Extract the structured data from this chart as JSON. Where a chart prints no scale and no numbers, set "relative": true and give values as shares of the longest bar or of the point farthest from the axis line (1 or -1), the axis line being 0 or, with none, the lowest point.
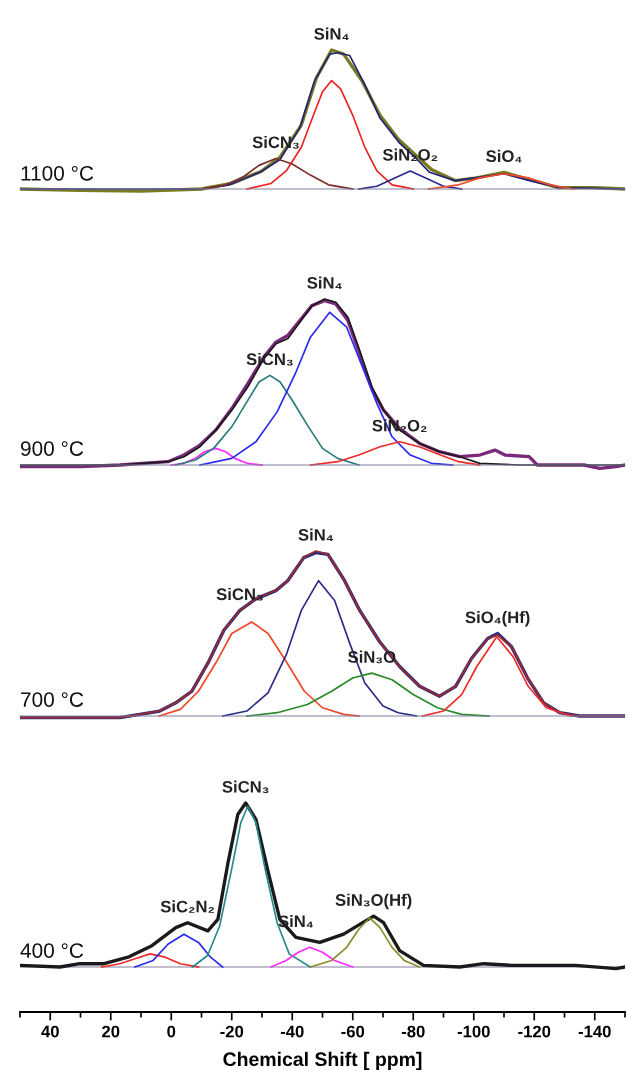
{
  "chart_data": [
    {
      "type": "line",
      "relative": true,
      "tick_labels": false,
      "grid": false,
      "legend": false,
      "marker": "none",
      "line_style": "solid",
      "xlim": [
        50,
        -150
      ],
      "annotations": [
        "1100 °C",
        {
          "text": "SiN₄",
          "x": -53,
          "y": 1.0
        },
        {
          "text": "SiCN₃",
          "x": -34.6,
          "y": 0.22
        },
        {
          "text": "SiN₂O₂",
          "x": -79,
          "y": 0.13
        },
        {
          "text": "SiO₄",
          "x": -110,
          "y": 0.12
        }
      ],
      "series": [
        {
          "color": "#7a7a20",
          "x": [
            50,
            30,
            10,
            -10,
            -20,
            -30,
            -36,
            -43,
            -48,
            -53,
            -57,
            -63,
            -69,
            -75,
            -81,
            -86,
            -94,
            -101,
            -110,
            -118,
            -128,
            -140,
            -150
          ],
          "values": [
            0,
            -0.01,
            -0.015,
            0,
            0.04,
            0.13,
            0.23,
            0.46,
            0.8,
            1.0,
            0.97,
            0.78,
            0.53,
            0.36,
            0.24,
            0.14,
            0.06,
            0.08,
            0.12,
            0.07,
            0.01,
            0.01,
            0
          ]
        },
        {
          "color": "#23237a",
          "x": [
            50,
            -10,
            -19.3,
            -29.3,
            -35.9,
            -42.5,
            -47.4,
            -52.4,
            -55,
            -59,
            -64,
            -69,
            -75.5,
            -80.5,
            -85.4,
            -93.7,
            -100.3,
            -110,
            -118.5,
            -128.4,
            -150
          ],
          "values": [
            0,
            0,
            0.03,
            0.12,
            0.21,
            0.44,
            0.78,
            0.97,
            0.98,
            0.96,
            0.75,
            0.51,
            0.33,
            0.23,
            0.12,
            0.06,
            0.08,
            0.11,
            0.06,
            0.01,
            0
          ]
        },
        {
          "color": "#7b2d2d",
          "x": [
            -10,
            -18,
            -24,
            -29,
            -34.6,
            -40,
            -46,
            -52,
            -60
          ],
          "values": [
            0,
            0.03,
            0.09,
            0.17,
            0.22,
            0.18,
            0.1,
            0.03,
            0
          ]
        },
        {
          "color": "#ee2222",
          "x": [
            -25,
            -33,
            -38,
            -43,
            -47,
            -50,
            -53,
            -56,
            -60,
            -64,
            -68,
            -73,
            -80
          ],
          "values": [
            0,
            0.04,
            0.13,
            0.3,
            0.53,
            0.7,
            0.78,
            0.72,
            0.53,
            0.3,
            0.13,
            0.03,
            0
          ]
        },
        {
          "color": "#2a2a8c",
          "x": [
            -62,
            -68,
            -73,
            -79,
            -85,
            -90,
            -96
          ],
          "values": [
            0,
            0.02,
            0.07,
            0.13,
            0.07,
            0.02,
            0
          ]
        },
        {
          "color": "#f04a2a",
          "x": [
            -85,
            -95,
            -102,
            -110,
            -118,
            -125,
            -133
          ],
          "values": [
            0,
            0.03,
            0.08,
            0.11,
            0.08,
            0.03,
            0
          ]
        }
      ]
    },
    {
      "type": "line",
      "relative": true,
      "tick_labels": false,
      "grid": false,
      "legend": false,
      "marker": "none",
      "line_style": "solid",
      "xlim": [
        50,
        -150
      ],
      "annotations": [
        "900 °C",
        {
          "text": "SiN₄",
          "x": -50.7,
          "y": 1.0
        },
        {
          "text": "SiCN₃",
          "x": -32.6,
          "y": 0.54
        },
        {
          "text": "SiN₂O₂",
          "x": -75.5,
          "y": 0.14
        }
      ],
      "series": [
        {
          "color": "#7b2a7b",
          "x": [
            50,
            30,
            17,
            1.1,
            -4.2,
            -9.5,
            -14.7,
            -20,
            -25.3,
            -30.6,
            -34.6,
            -38.5,
            -42.5,
            -46.5,
            -50.7,
            -54.4,
            -58.4,
            -62.3,
            -66.3,
            -70.2,
            -75.5,
            -82.1,
            -88.7,
            -95.4,
            -102,
            -107,
            -110.3,
            -118.3,
            -121,
            -136.4,
            -141.7,
            -147,
            -150
          ],
          "values": [
            -0.01,
            -0.01,
            0,
            0.02,
            0.06,
            0.12,
            0.21,
            0.34,
            0.49,
            0.65,
            0.74,
            0.78,
            0.87,
            0.96,
            0.99,
            0.97,
            0.87,
            0.67,
            0.46,
            0.33,
            0.22,
            0.13,
            0.08,
            0.05,
            0.06,
            0.09,
            0.06,
            0.05,
            0,
            0,
            -0.02,
            -0.01,
            0
          ]
        },
        {
          "color": "#1a1a1a",
          "x": [
            50,
            17,
            1.1,
            -4.2,
            -9.5,
            -14.7,
            -20,
            -25.3,
            -30.6,
            -34.6,
            -38.5,
            -42.5,
            -46.5,
            -50.7,
            -54.4,
            -58.4,
            -62.3,
            -66.3,
            -70.2,
            -75.5,
            -82.1,
            -88.7,
            -95.4,
            -102,
            -115,
            -150
          ],
          "values": [
            0,
            0,
            0.02,
            0.05,
            0.11,
            0.21,
            0.33,
            0.47,
            0.64,
            0.73,
            0.76,
            0.86,
            0.96,
            1.0,
            0.98,
            0.89,
            0.69,
            0.47,
            0.33,
            0.21,
            0.13,
            0.08,
            0.05,
            0.01,
            0,
            0
          ]
        },
        {
          "color": "#ff2aff",
          "x": [
            0,
            -4.2,
            -8,
            -11,
            -14.7,
            -18,
            -21,
            -25,
            -30
          ],
          "values": [
            0,
            0.01,
            0.04,
            0.08,
            0.1,
            0.08,
            0.04,
            0.01,
            0
          ]
        },
        {
          "color": "#2a7a7a",
          "x": [
            -1.5,
            -8,
            -14,
            -20,
            -25,
            -29,
            -32.6,
            -36,
            -40,
            -45,
            -50,
            -55,
            -62
          ],
          "values": [
            0,
            0.03,
            0.1,
            0.23,
            0.38,
            0.5,
            0.54,
            0.5,
            0.39,
            0.24,
            0.1,
            0.04,
            0
          ]
        },
        {
          "color": "#2a2af0",
          "x": [
            -9.5,
            -20,
            -28,
            -35,
            -41,
            -46,
            -52.4,
            -58,
            -63,
            -68,
            -73,
            -79,
            -86,
            -93
          ],
          "values": [
            0,
            0.04,
            0.14,
            0.32,
            0.55,
            0.77,
            0.92,
            0.83,
            0.6,
            0.37,
            0.17,
            0.06,
            0.01,
            0
          ]
        },
        {
          "color": "#f02a2a",
          "x": [
            -46,
            -55,
            -62,
            -69,
            -75.5,
            -82,
            -89,
            -95,
            -102
          ],
          "values": [
            0,
            0.02,
            0.06,
            0.11,
            0.14,
            0.11,
            0.06,
            0.02,
            0
          ]
        }
      ]
    },
    {
      "type": "line",
      "relative": true,
      "tick_labels": false,
      "grid": false,
      "legend": false,
      "marker": "none",
      "line_style": "solid",
      "xlim": [
        50,
        -150
      ],
      "annotations": [
        "700 °C",
        {
          "text": "SiN₄",
          "x": -47.8,
          "y": 1.0
        },
        {
          "text": "SiCN₃",
          "x": -22.7,
          "y": 0.64
        },
        {
          "text": "SiN₃O",
          "x": -66.3,
          "y": 0.26
        },
        {
          "text": "SiO₄(Hf)",
          "x": -107.9,
          "y": 0.5
        }
      ],
      "series": [
        {
          "color": "#2b2b80",
          "x": [
            50,
            30,
            17,
            3.8,
            -1.5,
            -6.8,
            -12.1,
            -17.4,
            -22.7,
            -28,
            -34.6,
            -38.5,
            -43.8,
            -47.8,
            -51.8,
            -57,
            -62.3,
            -68.9,
            -75.5,
            -82.1,
            -88.7,
            -94,
            -99.3,
            -104.6,
            -107.9,
            -112.5,
            -117.8,
            -123.1,
            -128.4,
            -135,
            -147,
            -150
          ],
          "values": [
            -0.01,
            -0.01,
            -0.01,
            0.03,
            0.08,
            0.15,
            0.32,
            0.52,
            0.64,
            0.71,
            0.76,
            0.82,
            0.96,
            0.99,
            0.98,
            0.83,
            0.64,
            0.45,
            0.3,
            0.18,
            0.12,
            0.18,
            0.35,
            0.47,
            0.5,
            0.42,
            0.23,
            0.08,
            0.02,
            0,
            0,
            0
          ]
        },
        {
          "color": "#a02a2a",
          "x": [
            50,
            17,
            3.8,
            -1.5,
            -6.8,
            -12.1,
            -17.4,
            -22.7,
            -28,
            -34.6,
            -38.5,
            -43.8,
            -47.8,
            -51.8,
            -57,
            -62.3,
            -68.9,
            -75.5,
            -82.1,
            -88.7,
            -94,
            -99.3,
            -104.6,
            -107.9,
            -112.5,
            -117.8,
            -123.1,
            -128.4,
            -135,
            -147,
            -150
          ],
          "values": [
            -0.01,
            -0.01,
            0.03,
            0.08,
            0.15,
            0.32,
            0.52,
            0.64,
            0.71,
            0.76,
            0.82,
            0.96,
            1.0,
            0.98,
            0.83,
            0.64,
            0.45,
            0.3,
            0.18,
            0.12,
            0.18,
            0.35,
            0.47,
            0.49,
            0.42,
            0.23,
            0.08,
            0.02,
            0,
            0,
            0
          ]
        },
        {
          "color": "#f0462a",
          "x": [
            4,
            -3,
            -9,
            -15,
            -20,
            -26.6,
            -32,
            -38,
            -44,
            -50,
            -57,
            -62
          ],
          "values": [
            0,
            0.04,
            0.15,
            0.33,
            0.5,
            0.57,
            0.5,
            0.33,
            0.15,
            0.05,
            0.01,
            0
          ]
        },
        {
          "color": "#2b2b8a",
          "x": [
            -17,
            -25,
            -32,
            -38,
            -43,
            -48.7,
            -54,
            -59,
            -64,
            -70,
            -75,
            -81
          ],
          "values": [
            0,
            0.03,
            0.14,
            0.37,
            0.64,
            0.82,
            0.7,
            0.44,
            0.2,
            0.06,
            0.02,
            0
          ]
        },
        {
          "color": "#2a8a2a",
          "x": [
            -25,
            -35,
            -45,
            -53,
            -60,
            -66.3,
            -73,
            -80,
            -88,
            -96,
            -105
          ],
          "values": [
            0,
            0.02,
            0.07,
            0.15,
            0.23,
            0.26,
            0.22,
            0.13,
            0.05,
            0.01,
            0
          ]
        },
        {
          "color": "#f02a2a",
          "x": [
            -83,
            -90,
            -96,
            -101,
            -107.6,
            -113,
            -118,
            -124,
            -132
          ],
          "values": [
            0,
            0.03,
            0.13,
            0.3,
            0.48,
            0.36,
            0.18,
            0.05,
            0
          ]
        }
      ]
    },
    {
      "type": "line",
      "relative": true,
      "xlim": [
        50,
        -150
      ],
      "tick_labels": "x",
      "grid": false,
      "legend": false,
      "marker": "none",
      "line_style": "solid",
      "xticks": [
        40,
        20,
        0,
        -20,
        -40,
        -60,
        -80,
        -100,
        -120,
        -140
      ],
      "ref_lines": [
        {
          "axis": "y",
          "value": 0,
          "color": "#8080a0"
        }
      ],
      "xlabel": "Chemical Shift [ ppm]",
      "annotations": [
        "400 °C",
        {
          "text": "SiC₂N₂",
          "x": -5.4,
          "y": 0.27
        },
        {
          "text": "SiCN₃",
          "x": -24.6,
          "y": 1.0
        },
        {
          "text": "SiN₄",
          "x": -41.2,
          "y": 0.18
        },
        {
          "text": "SiN₃O(Hf)",
          "x": -66.9,
          "y": 0.31
        }
      ],
      "series": [
        {
          "color": "#1a1a1a",
          "x": [
            50,
            36.8,
            30.2,
            22.2,
            14.3,
            6.4,
            -1.5,
            -5.4,
            -12.1,
            -15.4,
            -18.7,
            -22,
            -24.6,
            -28,
            -31.9,
            -35.9,
            -41.2,
            -49.1,
            -57,
            -62.3,
            -66.9,
            -70.2,
            -75.5,
            -83.4,
            -95.4,
            -103.3,
            -112.5,
            -133.7,
            -147,
            -150
          ],
          "values": [
            0.01,
            0,
            0.02,
            0.02,
            0.06,
            0.13,
            0.24,
            0.27,
            0.22,
            0.29,
            0.63,
            0.93,
            1.0,
            0.9,
            0.59,
            0.29,
            0.18,
            0.15,
            0.2,
            0.26,
            0.31,
            0.27,
            0.1,
            0.01,
            0,
            0.02,
            0.01,
            0.01,
            -0.01,
            0
          ]
        },
        {
          "color": "#f02a2a",
          "x": [
            23,
            17,
            12,
            7,
            2,
            -3,
            -9
          ],
          "values": [
            0,
            0.02,
            0.05,
            0.08,
            0.06,
            0.02,
            0
          ]
        },
        {
          "color": "#2a2af0",
          "x": [
            12,
            6,
            1,
            -4.2,
            -9,
            -13,
            -17
          ],
          "values": [
            0,
            0.04,
            0.14,
            0.2,
            0.15,
            0.06,
            0
          ]
        },
        {
          "color": "#2a8a8a",
          "x": [
            -7,
            -12,
            -16,
            -20,
            -23,
            -25.3,
            -28,
            -31,
            -35,
            -39,
            -46
          ],
          "values": [
            0,
            0.07,
            0.25,
            0.6,
            0.88,
            0.98,
            0.88,
            0.6,
            0.27,
            0.08,
            0
          ]
        },
        {
          "color": "#ff2aff",
          "x": [
            -33,
            -38,
            -42,
            -45.8,
            -50,
            -54,
            -60
          ],
          "values": [
            0,
            0.04,
            0.09,
            0.12,
            0.09,
            0.04,
            0
          ]
        },
        {
          "color": "#8a8a2a",
          "x": [
            -46,
            -53,
            -58,
            -62,
            -65.6,
            -69,
            -73,
            -77,
            -82
          ],
          "values": [
            0,
            0.04,
            0.12,
            0.23,
            0.3,
            0.24,
            0.12,
            0.04,
            0
          ]
        }
      ]
    }
  ]
}
